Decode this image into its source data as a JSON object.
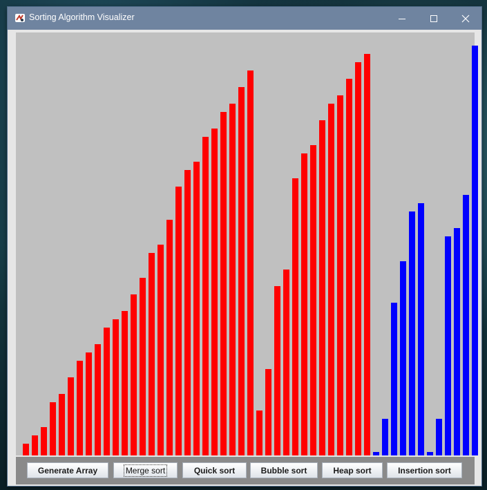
{
  "window": {
    "title": "Sorting Algorithm Visualizer",
    "controls": [
      "minimize-icon",
      "maximize-icon",
      "close-icon"
    ]
  },
  "bars": {
    "colors": {
      "sorted": "#ff0000",
      "pending": "#0000ff"
    },
    "values": [
      {
        "v": 17,
        "s": "sorted"
      },
      {
        "v": 29,
        "s": "sorted"
      },
      {
        "v": 41,
        "s": "sorted"
      },
      {
        "v": 77,
        "s": "sorted"
      },
      {
        "v": 89,
        "s": "sorted"
      },
      {
        "v": 113,
        "s": "sorted"
      },
      {
        "v": 137,
        "s": "sorted"
      },
      {
        "v": 149,
        "s": "sorted"
      },
      {
        "v": 161,
        "s": "sorted"
      },
      {
        "v": 185,
        "s": "sorted"
      },
      {
        "v": 197,
        "s": "sorted"
      },
      {
        "v": 209,
        "s": "sorted"
      },
      {
        "v": 233,
        "s": "sorted"
      },
      {
        "v": 257,
        "s": "sorted"
      },
      {
        "v": 293,
        "s": "sorted"
      },
      {
        "v": 305,
        "s": "sorted"
      },
      {
        "v": 341,
        "s": "sorted"
      },
      {
        "v": 389,
        "s": "sorted"
      },
      {
        "v": 413,
        "s": "sorted"
      },
      {
        "v": 425,
        "s": "sorted"
      },
      {
        "v": 461,
        "s": "sorted"
      },
      {
        "v": 473,
        "s": "sorted"
      },
      {
        "v": 497,
        "s": "sorted"
      },
      {
        "v": 509,
        "s": "sorted"
      },
      {
        "v": 533,
        "s": "sorted"
      },
      {
        "v": 557,
        "s": "sorted"
      },
      {
        "v": 65,
        "s": "sorted"
      },
      {
        "v": 125,
        "s": "sorted"
      },
      {
        "v": 245,
        "s": "sorted"
      },
      {
        "v": 269,
        "s": "sorted"
      },
      {
        "v": 401,
        "s": "sorted"
      },
      {
        "v": 437,
        "s": "sorted"
      },
      {
        "v": 449,
        "s": "sorted"
      },
      {
        "v": 485,
        "s": "sorted"
      },
      {
        "v": 509,
        "s": "sorted"
      },
      {
        "v": 521,
        "s": "sorted"
      },
      {
        "v": 545,
        "s": "sorted"
      },
      {
        "v": 569,
        "s": "sorted"
      },
      {
        "v": 581,
        "s": "sorted"
      },
      {
        "v": 5,
        "s": "pending"
      },
      {
        "v": 53,
        "s": "pending"
      },
      {
        "v": 221,
        "s": "pending"
      },
      {
        "v": 281,
        "s": "pending"
      },
      {
        "v": 353,
        "s": "pending"
      },
      {
        "v": 365,
        "s": "pending"
      },
      {
        "v": 5,
        "s": "pending"
      },
      {
        "v": 53,
        "s": "pending"
      },
      {
        "v": 317,
        "s": "pending"
      },
      {
        "v": 329,
        "s": "pending"
      },
      {
        "v": 377,
        "s": "pending"
      },
      {
        "v": 593,
        "s": "pending"
      }
    ]
  },
  "buttons": [
    {
      "label": "Generate Array",
      "name": "generate-array-button",
      "focused": false
    },
    {
      "label": "Merge sort",
      "name": "merge-sort-button",
      "focused": true
    },
    {
      "label": "Quick sort",
      "name": "quick-sort-button",
      "focused": false
    },
    {
      "label": "Bubble sort",
      "name": "bubble-sort-button",
      "focused": false
    },
    {
      "label": "Heap sort",
      "name": "heap-sort-button",
      "focused": false
    },
    {
      "label": "Insertion sort",
      "name": "insertion-sort-button",
      "focused": false
    }
  ]
}
